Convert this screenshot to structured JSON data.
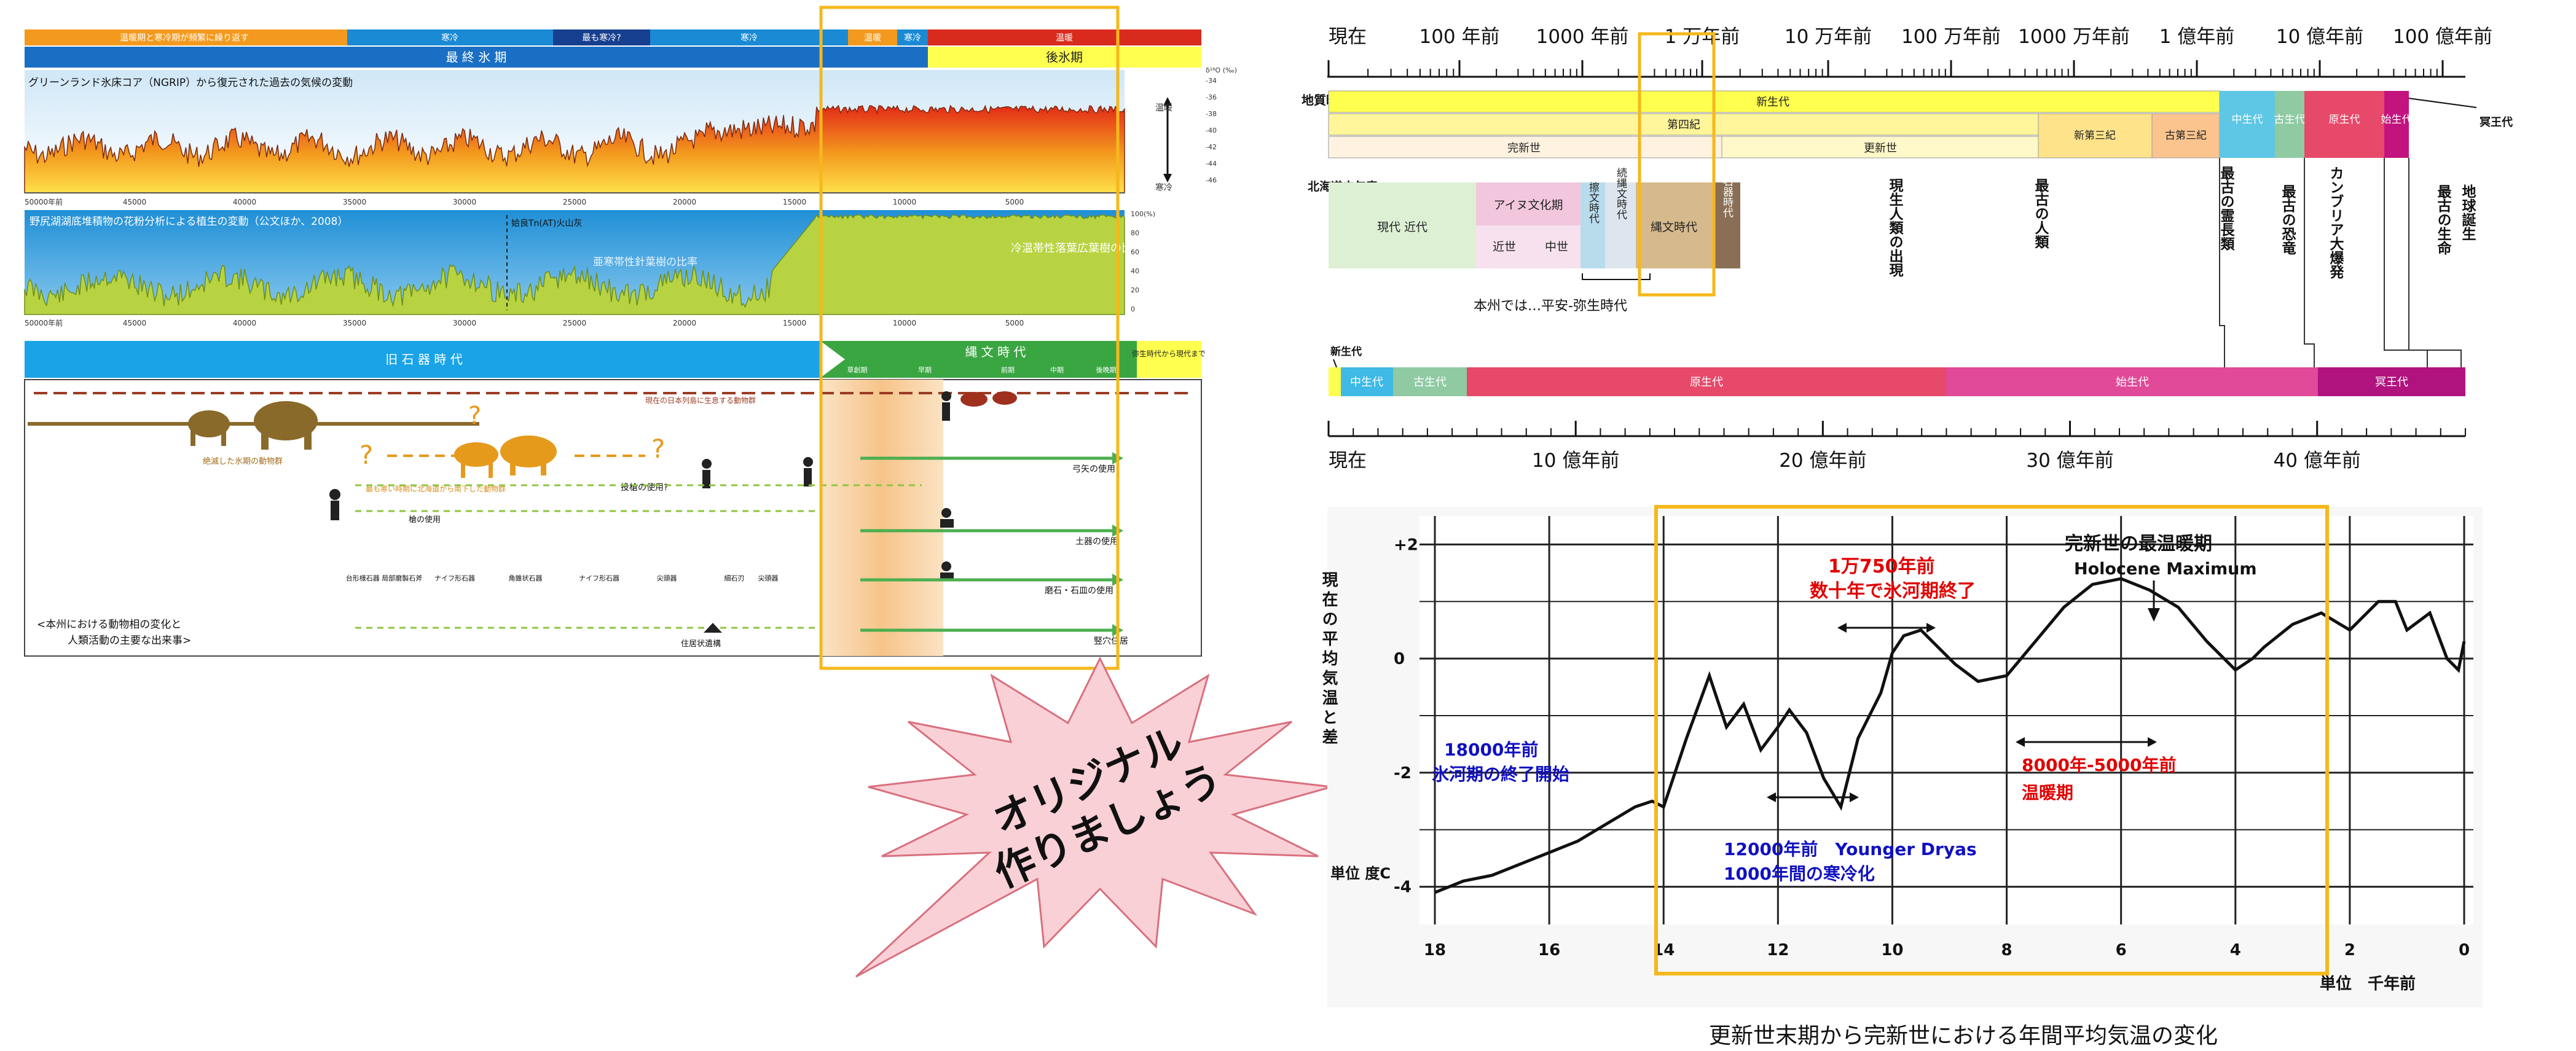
{
  "colors": {
    "accent_orange": "#f5b81c",
    "burst_fill": "#f9d0d6",
    "burst_stroke": "#d8707e",
    "red_text": "#e00000",
    "blue_text": "#1010c0",
    "ice_blue": "#1a8ad4",
    "warm_red": "#d82b1e",
    "yellow": "#ffff50",
    "green": "#8dc63f",
    "magenta": "#b0137e"
  },
  "left_panel": {
    "top_bar": {
      "segments": [
        "温暖期と寒冷期が頻繁に繰り返す",
        "寒冷",
        "最も寒冷?",
        "寒冷",
        "温暖",
        "寒冷",
        "温暖"
      ],
      "period_last_glacial": "最 終 氷 期",
      "period_postglacial": "後氷期"
    },
    "ice_core": {
      "title": "グリーンランド氷床コア（NGRIP）から復元された過去の気候の変動",
      "label_warm": "温暖",
      "label_cold": "寒冷",
      "axis_unit": "δ¹⁸O (‰)",
      "y_ticks": [
        "-34",
        "-36",
        "-38",
        "-40",
        "-42",
        "-44",
        "-46"
      ],
      "x_ticks": [
        "50000年前",
        "45000",
        "40000",
        "35000",
        "30000",
        "25000",
        "20000",
        "15000",
        "10000",
        "5000"
      ]
    },
    "pollen": {
      "title": "野尻湖湖底堆積物の花粉分析による植生の変動（公文ほか、2008）",
      "ash_label": "姶良Tn(AT)火山灰",
      "label_conifer": "亜寒帯性針葉樹の比率",
      "label_broadleaf": "冷温帯性落葉広葉樹の比率",
      "y_ticks": [
        "100(%)",
        "80",
        "60",
        "40",
        "20",
        "0"
      ],
      "x_ticks": [
        "50000年前",
        "45000",
        "40000",
        "35000",
        "30000",
        "25000",
        "20000",
        "15000",
        "10000",
        "5000"
      ]
    },
    "eras": {
      "paleolithic": "旧 石 器 時 代",
      "jomon": "縄 文 時 代",
      "jomon_sub": [
        "草創期",
        "早期",
        "前期",
        "中期",
        "後晩期"
      ],
      "yayoi": "弥生時代から現代まで"
    },
    "bottom": {
      "animal_line_label": "現在の日本列島に生息する動物群",
      "extinct_label": "絶滅した氷期の動物群",
      "migrant_label": "最も寒い時期に北海道から南下した動物群",
      "spear_label": "投槍の使用?",
      "stone_tools_label": "槍の使用",
      "tool_names": [
        "台形様石器 局部磨製石斧",
        "ナイフ形石器",
        "角錐状石器",
        "ナイフ形石器",
        "尖頭器",
        "細石刃",
        "尖頭器"
      ],
      "events": [
        "弓矢の使用",
        "土器の使用",
        "磨石・石皿の使用",
        "竪穴住居"
      ],
      "dwelling_label": "住居状遺構",
      "caption_line1": "<本州における動物相の変化と",
      "caption_line2": "人類活動の主要な出来事>"
    }
  },
  "burst": {
    "line1": "オリジナル",
    "line2": "作りましょう"
  },
  "timeline_log": {
    "ticks": [
      "現在",
      "100 年前",
      "1000 年前",
      "1 万年前",
      "10 万年前",
      "100 万年前",
      "1000 万年前",
      "1 億年前",
      "10 億年前",
      "100 億年前"
    ],
    "side_label_geo": "地質時代",
    "side_label_hokkaido": "北海道史年表",
    "cenozoic": "新生代",
    "quaternary": "第四紀",
    "holocene": "完新世",
    "pleistocene": "更新世",
    "neogene": "新第三紀",
    "paleogene": "古第三紀",
    "mesozoic": "中生代",
    "paleozoic": "古生代",
    "proterozoic": "原生代",
    "archean": "始生代",
    "hadean": "冥王代",
    "hokkaido": {
      "modern": "現代",
      "early_modern": "近代",
      "ainu": "アイヌ文化期",
      "kinsei": "近世",
      "chusei": "中世",
      "satsumon": "擦文時代",
      "zoku_jomon": "続縄文時代",
      "jomon": "縄文時代",
      "paleolithic": "旧石器時代"
    },
    "honshu_note": "本州では…平安-弥生時代",
    "events": [
      "現生人類の出現",
      "最古の人類",
      "最古の霊長類",
      "最古の恐竜",
      "カンブリア大爆発",
      "最古の生命",
      "地球誕生"
    ]
  },
  "timeline_linear": {
    "cenozoic_label": "新生代",
    "segments": [
      "中生代",
      "古生代",
      "原生代",
      "始生代",
      "冥王代"
    ],
    "ticks": [
      "現在",
      "10 億年前",
      "20 億年前",
      "30 億年前",
      "40 億年前"
    ]
  },
  "temp_chart": {
    "y_label": "現在の平均気温と差",
    "unit_label": "単位 度C",
    "y_ticks": [
      "+2",
      "0",
      "-2",
      "-4"
    ],
    "x_ticks": [
      "18",
      "16",
      "14",
      "12",
      "10",
      "8",
      "6",
      "4",
      "2",
      "0"
    ],
    "x_unit": "単位　千年前",
    "ann_holocene_1": "完新世の最温暖期",
    "ann_holocene_2": "Holocene Maximum",
    "ann_end_1": "1万750年前",
    "ann_end_2": "数十年で氷河期終了",
    "ann_start_1": "18000年前",
    "ann_start_2": "氷河期の終了開始",
    "ann_yd_1": "12000年前　Younger Dryas",
    "ann_yd_2": "1000年間の寒冷化",
    "ann_warm_1": "8000年-5000年前",
    "ann_warm_2": "温暖期",
    "caption": "更新世末期から完新世における年間平均気温の変化"
  },
  "chart_data": {
    "type": "line",
    "title": "更新世末期から完新世における年間平均気温の変化",
    "xlabel": "単位　千年前",
    "ylabel": "現在の平均気温と差（単位 度C）",
    "xlim": [
      18,
      0
    ],
    "ylim": [
      -4.5,
      2.5
    ],
    "x": [
      18,
      17.5,
      17,
      16.5,
      16,
      15.5,
      15,
      14.5,
      14.2,
      14,
      13.6,
      13.2,
      12.9,
      12.6,
      12.3,
      12.0,
      11.8,
      11.5,
      11.2,
      10.9,
      10.6,
      10.4,
      10.2,
      10.0,
      9.8,
      9.5,
      9.2,
      8.9,
      8.5,
      8,
      7.5,
      7,
      6.5,
      6,
      5.5,
      5,
      4.5,
      4,
      3.7,
      3.5,
      3.0,
      2.5,
      2.0,
      1.8,
      1.5,
      1.2,
      1.0,
      0.6,
      0.3,
      0.1,
      0
    ],
    "series": [
      {
        "values": [
          -4.1,
          -3.9,
          -3.8,
          -3.6,
          -3.4,
          -3.2,
          -2.9,
          -2.6,
          -2.5,
          -2.6,
          -1.4,
          -0.3,
          -1.2,
          -0.8,
          -1.6,
          -1.2,
          -0.9,
          -1.3,
          -2.1,
          -2.6,
          -1.4,
          -1.0,
          -0.6,
          0.1,
          0.4,
          0.5,
          0.2,
          -0.1,
          -0.4,
          -0.3,
          0.3,
          0.9,
          1.3,
          1.4,
          1.2,
          0.9,
          0.3,
          -0.2,
          0.0,
          0.2,
          0.6,
          0.8,
          0.5,
          0.7,
          1.0,
          1.0,
          0.5,
          0.8,
          0.0,
          -0.2,
          0.3
        ]
      }
    ]
  }
}
